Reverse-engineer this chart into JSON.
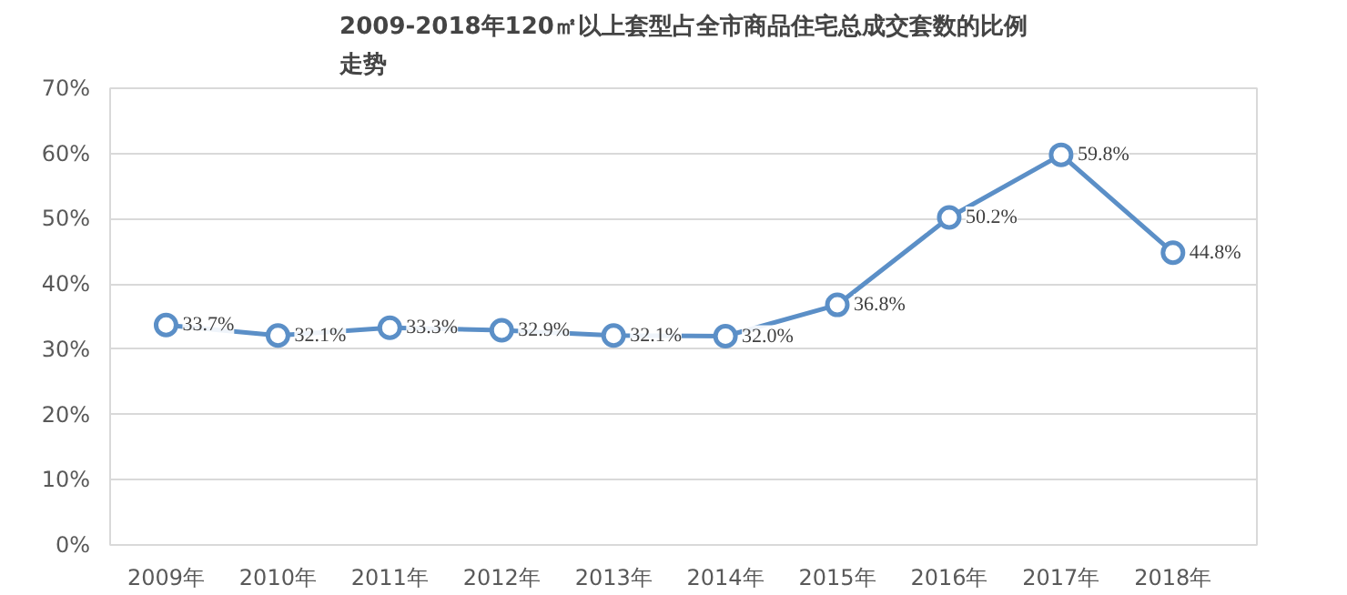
{
  "chart_data": {
    "type": "line",
    "title": "2009-2018年120㎡以上套型占全市商品住宅总成交套数的比例走势",
    "categories": [
      "2009年",
      "2010年",
      "2011年",
      "2012年",
      "2013年",
      "2014年",
      "2015年",
      "2016年",
      "2017年",
      "2018年"
    ],
    "series": [
      {
        "color": "#5b8fc7",
        "values": [
          33.7,
          32.1,
          33.3,
          32.9,
          32.1,
          32.0,
          36.8,
          50.2,
          59.8,
          44.8
        ],
        "value_labels": [
          "33.7%",
          "32.1%",
          "33.3%",
          "32.9%",
          "32.1%",
          "32.0%",
          "36.8%",
          "50.2%",
          "59.8%",
          "44.8%"
        ]
      }
    ],
    "ylim": [
      0,
      70
    ],
    "yticks": [
      {
        "value": 0,
        "label": "0%"
      },
      {
        "value": 10,
        "label": "10%"
      },
      {
        "value": 20,
        "label": "20%"
      },
      {
        "value": 30,
        "label": "30%"
      },
      {
        "value": 40,
        "label": "40%"
      },
      {
        "value": 50,
        "label": "50%"
      },
      {
        "value": 60,
        "label": "60%"
      },
      {
        "value": 70,
        "label": "70%"
      }
    ],
    "grid": "y",
    "marker": "circle",
    "line_style": "solid"
  }
}
